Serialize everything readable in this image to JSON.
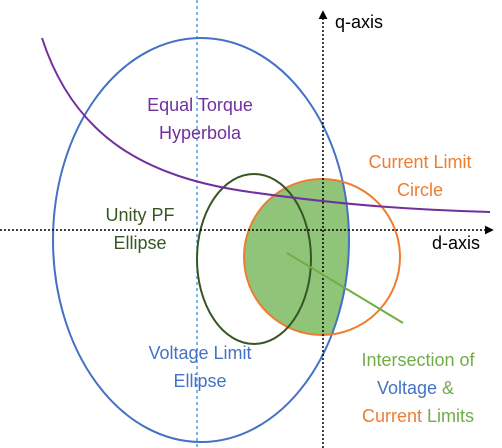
{
  "axes": {
    "q": "q-axis",
    "d": "d-axis"
  },
  "labels": {
    "torque": {
      "lines": [
        "Equal Torque",
        "Hyperbola"
      ]
    },
    "current": {
      "lines": [
        "Current Limit",
        "Circle"
      ]
    },
    "unity": {
      "lines": [
        "Unity PF",
        "Ellipse"
      ]
    },
    "voltage": {
      "lines": [
        "Voltage Limit",
        "Ellipse"
      ]
    },
    "intersection": {
      "lines": [
        [
          {
            "text": "Intersection of",
            "color": "#70ad47"
          }
        ],
        [
          {
            "text": "Voltage",
            "color": "#4472c4"
          },
          {
            "text": " & ",
            "color": "#70ad47"
          }
        ],
        [
          {
            "text": "Current",
            "color": "#ed7d31"
          },
          {
            "text": " Limits",
            "color": "#70ad47"
          }
        ]
      ]
    }
  }
}
